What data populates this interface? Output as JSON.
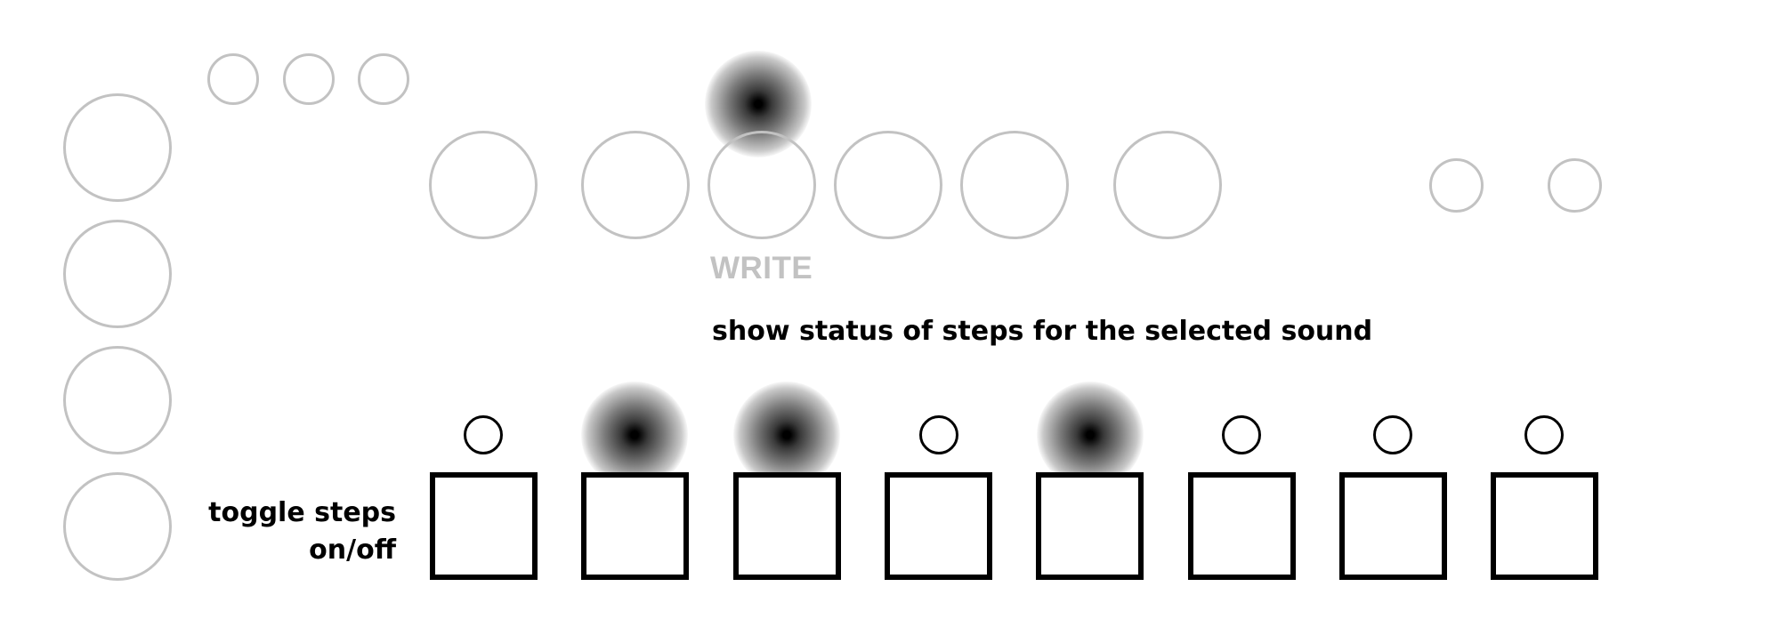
{
  "labels": {
    "write": "WRITE",
    "status_caption": "show status of steps for the selected sound",
    "toggle_caption_line1": "toggle steps",
    "toggle_caption_line2": "on/off"
  },
  "colors": {
    "inactive_outline": "#c2c2c2",
    "active_outline": "#000000",
    "led_glow": "#000000",
    "background": "#ffffff"
  },
  "step_leds": [
    {
      "step": 1,
      "lit": false
    },
    {
      "step": 2,
      "lit": true
    },
    {
      "step": 3,
      "lit": true
    },
    {
      "step": 4,
      "lit": false
    },
    {
      "step": 5,
      "lit": true
    },
    {
      "step": 6,
      "lit": false
    },
    {
      "step": 7,
      "lit": false
    },
    {
      "step": 8,
      "lit": false
    }
  ],
  "write_led": {
    "lit": true
  }
}
